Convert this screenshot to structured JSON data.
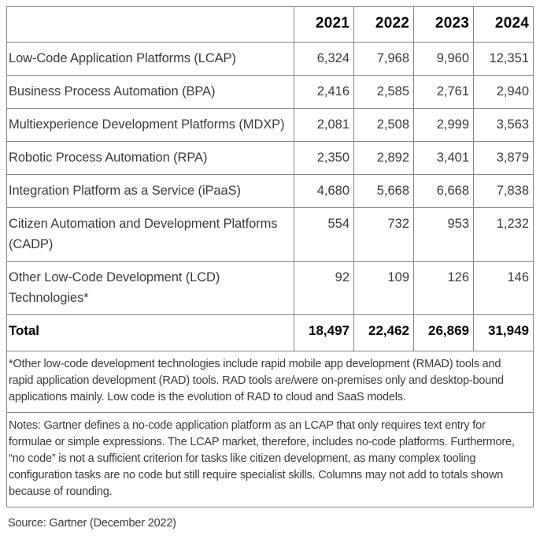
{
  "table": {
    "columns": [
      "",
      "2021",
      "2022",
      "2023",
      "2024"
    ],
    "rows": [
      {
        "label": "Low-Code Application Platforms (LCAP)",
        "values": [
          "6,324",
          "7,968",
          "9,960",
          "12,351"
        ]
      },
      {
        "label": "Business Process Automation (BPA)",
        "values": [
          "2,416",
          "2,585",
          "2,761",
          "2,940"
        ]
      },
      {
        "label": "Multiexperience Development Platforms (MDXP)",
        "values": [
          "2,081",
          "2,508",
          "2,999",
          "3,563"
        ]
      },
      {
        "label": "Robotic Process Automation (RPA)",
        "values": [
          "2,350",
          "2,892",
          "3,401",
          "3,879"
        ]
      },
      {
        "label": "Integration Platform as a Service (iPaaS)",
        "values": [
          "4,680",
          "5,668",
          "6,668",
          "7,838"
        ]
      },
      {
        "label": "Citizen Automation and Development Platforms (CADP)",
        "values": [
          "554",
          "732",
          "953",
          "1,232"
        ]
      },
      {
        "label": "Other Low-Code Development (LCD) Technologies*",
        "values": [
          "92",
          "109",
          "126",
          "146"
        ]
      }
    ],
    "total": {
      "label": "Total",
      "values": [
        "18,497",
        "22,462",
        "26,869",
        "31,949"
      ]
    },
    "footnote": "*Other low-code development technologies include rapid mobile app development (RMAD) tools and rapid application development (RAD) tools. RAD tools are/were on-premises only and desktop-bound applications mainly. Low code is the evolution of RAD to cloud and SaaS models.",
    "notes": "Notes: Gartner defines a no-code application platform as an LCAP that only requires text entry for formulae or simple expressions. The LCAP market, therefore, includes no-code platforms. Furthermore, “no code” is not a sufficient criterion for tasks like citizen development, as many complex tooling configuration tasks are no code but still require specialist skills. Columns may not add to totals shown because of rounding.",
    "source": "Source: Gartner (December 2022)"
  },
  "colors": {
    "text": "#3b3b3d",
    "emphasis": "#000000",
    "border": "#858585",
    "background": "#ffffff"
  },
  "chart_data": {
    "type": "table",
    "title": "",
    "categories": [
      "2021",
      "2022",
      "2023",
      "2024"
    ],
    "series": [
      {
        "name": "Low-Code Application Platforms (LCAP)",
        "values": [
          6324,
          7968,
          9960,
          12351
        ]
      },
      {
        "name": "Business Process Automation (BPA)",
        "values": [
          2416,
          2585,
          2761,
          2940
        ]
      },
      {
        "name": "Multiexperience Development Platforms (MDXP)",
        "values": [
          2081,
          2508,
          2999,
          3563
        ]
      },
      {
        "name": "Robotic Process Automation (RPA)",
        "values": [
          2350,
          2892,
          3401,
          3879
        ]
      },
      {
        "name": "Integration Platform as a Service (iPaaS)",
        "values": [
          4680,
          5668,
          6668,
          7838
        ]
      },
      {
        "name": "Citizen Automation and Development Platforms (CADP)",
        "values": [
          554,
          732,
          953,
          1232
        ]
      },
      {
        "name": "Other Low-Code Development (LCD) Technologies*",
        "values": [
          92,
          109,
          126,
          146
        ]
      },
      {
        "name": "Total",
        "values": [
          18497,
          22462,
          26869,
          31949
        ]
      }
    ],
    "footnote": "*Other low-code development technologies include rapid mobile app development (RMAD) tools and rapid application development (RAD) tools. RAD tools are/were on-premises only and desktop-bound applications mainly. Low code is the evolution of RAD to cloud and SaaS models.",
    "source": "Gartner (December 2022)"
  }
}
